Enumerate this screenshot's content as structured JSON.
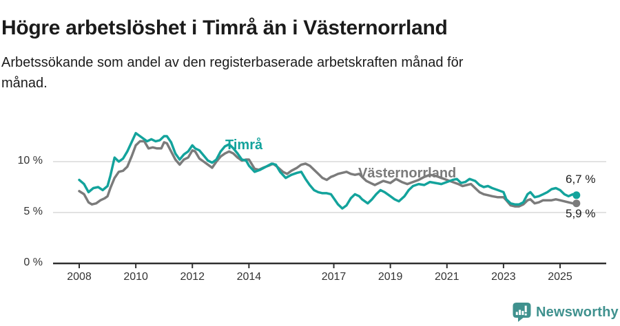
{
  "chart_data": {
    "type": "line",
    "title": "Högre arbetslöshet i Timrå än i Västernorrland",
    "subtitle": "Arbetssökande som andel av den registerbaserade arbetskraften månad för månad.",
    "subtitle_lines": [
      "Arbetssökande som andel av den registerbaserade arbetskraften månad för",
      "månad."
    ],
    "xlabel": "",
    "ylabel": "",
    "grid": true,
    "grid_color": "#d9d9d9",
    "axis_color": "#2f2f2f",
    "legend_position": "inline-labels-on-lines",
    "x_axis": {
      "range": [
        2007.1,
        2026.6
      ],
      "ticks": [
        {
          "label": "2008",
          "year": 2008
        },
        {
          "label": "2010",
          "year": 2010
        },
        {
          "label": "2012",
          "year": 2012
        },
        {
          "label": "2014",
          "year": 2014
        },
        {
          "label": "2017",
          "year": 2017
        },
        {
          "label": "2019",
          "year": 2019
        },
        {
          "label": "2021",
          "year": 2021
        },
        {
          "label": "2023",
          "year": 2023
        },
        {
          "label": "2025",
          "year": 2025
        }
      ]
    },
    "y_axis": {
      "range": [
        0,
        14.4
      ],
      "unit": "%",
      "ticks": [
        {
          "label": "0 %",
          "value": 0
        },
        {
          "label": "5 %",
          "value": 5
        },
        {
          "label": "10 %",
          "value": 10
        }
      ]
    },
    "series": [
      {
        "name": "Timrå",
        "color": "#13a39c",
        "end_label": "6,7 %",
        "end_value": 6.7,
        "points": [
          [
            2008.0,
            8.2
          ],
          [
            2008.17,
            7.8
          ],
          [
            2008.33,
            7.0
          ],
          [
            2008.5,
            7.4
          ],
          [
            2008.67,
            7.5
          ],
          [
            2008.83,
            7.2
          ],
          [
            2009.0,
            7.6
          ],
          [
            2009.1,
            8.6
          ],
          [
            2009.25,
            10.4
          ],
          [
            2009.4,
            10.0
          ],
          [
            2009.55,
            10.3
          ],
          [
            2009.7,
            11.0
          ],
          [
            2009.85,
            11.9
          ],
          [
            2010.0,
            12.8
          ],
          [
            2010.1,
            12.6
          ],
          [
            2010.25,
            12.3
          ],
          [
            2010.4,
            12.0
          ],
          [
            2010.55,
            12.2
          ],
          [
            2010.7,
            12.0
          ],
          [
            2010.85,
            12.1
          ],
          [
            2011.0,
            12.5
          ],
          [
            2011.1,
            12.5
          ],
          [
            2011.25,
            11.9
          ],
          [
            2011.4,
            10.8
          ],
          [
            2011.55,
            10.2
          ],
          [
            2011.7,
            10.7
          ],
          [
            2011.85,
            11.0
          ],
          [
            2012.0,
            11.6
          ],
          [
            2012.1,
            11.3
          ],
          [
            2012.25,
            11.1
          ],
          [
            2012.4,
            10.6
          ],
          [
            2012.55,
            10.1
          ],
          [
            2012.7,
            9.9
          ],
          [
            2012.85,
            10.2
          ],
          [
            2013.0,
            11.0
          ],
          [
            2013.15,
            11.5
          ],
          [
            2013.3,
            11.7
          ],
          [
            2013.45,
            11.3
          ],
          [
            2013.6,
            10.8
          ],
          [
            2013.75,
            10.2
          ],
          [
            2013.9,
            10.1
          ],
          [
            2014.0,
            9.6
          ],
          [
            2014.2,
            9.0
          ],
          [
            2014.4,
            9.2
          ],
          [
            2014.6,
            9.5
          ],
          [
            2014.8,
            9.8
          ],
          [
            2014.95,
            9.7
          ],
          [
            2015.1,
            9.0
          ],
          [
            2015.3,
            8.4
          ],
          [
            2015.5,
            8.7
          ],
          [
            2015.7,
            8.9
          ],
          [
            2015.85,
            9.0
          ],
          [
            2016.0,
            8.3
          ],
          [
            2016.15,
            7.7
          ],
          [
            2016.3,
            7.2
          ],
          [
            2016.45,
            7.0
          ],
          [
            2016.6,
            6.9
          ],
          [
            2016.75,
            6.9
          ],
          [
            2016.9,
            6.8
          ],
          [
            2017.0,
            6.4
          ],
          [
            2017.15,
            5.8
          ],
          [
            2017.3,
            5.4
          ],
          [
            2017.45,
            5.7
          ],
          [
            2017.6,
            6.4
          ],
          [
            2017.75,
            6.8
          ],
          [
            2017.9,
            6.6
          ],
          [
            2018.0,
            6.3
          ],
          [
            2018.2,
            5.9
          ],
          [
            2018.35,
            6.3
          ],
          [
            2018.5,
            6.8
          ],
          [
            2018.65,
            7.2
          ],
          [
            2018.8,
            7.0
          ],
          [
            2019.0,
            6.6
          ],
          [
            2019.15,
            6.3
          ],
          [
            2019.3,
            6.1
          ],
          [
            2019.5,
            6.6
          ],
          [
            2019.65,
            7.2
          ],
          [
            2019.8,
            7.6
          ],
          [
            2020.0,
            7.8
          ],
          [
            2020.2,
            7.7
          ],
          [
            2020.4,
            8.0
          ],
          [
            2020.6,
            7.9
          ],
          [
            2020.8,
            7.8
          ],
          [
            2021.0,
            8.0
          ],
          [
            2021.2,
            8.2
          ],
          [
            2021.35,
            8.3
          ],
          [
            2021.5,
            7.9
          ],
          [
            2021.65,
            8.0
          ],
          [
            2021.8,
            8.3
          ],
          [
            2022.0,
            8.1
          ],
          [
            2022.15,
            7.7
          ],
          [
            2022.3,
            7.5
          ],
          [
            2022.45,
            7.6
          ],
          [
            2022.6,
            7.4
          ],
          [
            2022.8,
            7.2
          ],
          [
            2023.0,
            7.0
          ],
          [
            2023.1,
            6.3
          ],
          [
            2023.25,
            5.9
          ],
          [
            2023.4,
            5.8
          ],
          [
            2023.55,
            5.8
          ],
          [
            2023.7,
            6.0
          ],
          [
            2023.85,
            6.8
          ],
          [
            2023.95,
            7.0
          ],
          [
            2024.1,
            6.5
          ],
          [
            2024.25,
            6.6
          ],
          [
            2024.4,
            6.8
          ],
          [
            2024.55,
            7.0
          ],
          [
            2024.7,
            7.3
          ],
          [
            2024.85,
            7.4
          ],
          [
            2025.0,
            7.2
          ],
          [
            2025.15,
            6.8
          ],
          [
            2025.3,
            6.6
          ],
          [
            2025.45,
            6.8
          ],
          [
            2025.58,
            6.7
          ]
        ]
      },
      {
        "name": "Västernorrland",
        "color": "#7b7b7b",
        "end_label": "5,9 %",
        "end_value": 5.9,
        "points": [
          [
            2008.0,
            7.1
          ],
          [
            2008.17,
            6.8
          ],
          [
            2008.33,
            6.0
          ],
          [
            2008.45,
            5.8
          ],
          [
            2008.6,
            5.9
          ],
          [
            2008.75,
            6.2
          ],
          [
            2008.9,
            6.4
          ],
          [
            2009.0,
            6.6
          ],
          [
            2009.1,
            7.4
          ],
          [
            2009.25,
            8.4
          ],
          [
            2009.4,
            9.0
          ],
          [
            2009.55,
            9.1
          ],
          [
            2009.7,
            9.5
          ],
          [
            2009.85,
            10.5
          ],
          [
            2010.0,
            11.6
          ],
          [
            2010.15,
            12.0
          ],
          [
            2010.3,
            12.0
          ],
          [
            2010.45,
            11.3
          ],
          [
            2010.6,
            11.4
          ],
          [
            2010.75,
            11.3
          ],
          [
            2010.9,
            11.3
          ],
          [
            2011.0,
            11.9
          ],
          [
            2011.1,
            11.8
          ],
          [
            2011.25,
            11.0
          ],
          [
            2011.4,
            10.2
          ],
          [
            2011.55,
            9.7
          ],
          [
            2011.7,
            10.2
          ],
          [
            2011.85,
            10.4
          ],
          [
            2012.0,
            11.1
          ],
          [
            2012.1,
            11.0
          ],
          [
            2012.25,
            10.3
          ],
          [
            2012.4,
            10.0
          ],
          [
            2012.55,
            9.7
          ],
          [
            2012.7,
            9.4
          ],
          [
            2012.85,
            10.0
          ],
          [
            2013.0,
            10.5
          ],
          [
            2013.15,
            10.8
          ],
          [
            2013.3,
            11.0
          ],
          [
            2013.45,
            10.8
          ],
          [
            2013.6,
            10.4
          ],
          [
            2013.75,
            10.1
          ],
          [
            2013.9,
            10.2
          ],
          [
            2014.0,
            10.2
          ],
          [
            2014.2,
            9.3
          ],
          [
            2014.35,
            9.2
          ],
          [
            2014.5,
            9.4
          ],
          [
            2014.7,
            9.6
          ],
          [
            2014.85,
            9.8
          ],
          [
            2015.0,
            9.5
          ],
          [
            2015.2,
            9.0
          ],
          [
            2015.35,
            8.8
          ],
          [
            2015.5,
            9.1
          ],
          [
            2015.7,
            9.4
          ],
          [
            2015.85,
            9.7
          ],
          [
            2016.0,
            9.8
          ],
          [
            2016.15,
            9.6
          ],
          [
            2016.3,
            9.2
          ],
          [
            2016.45,
            8.8
          ],
          [
            2016.6,
            8.4
          ],
          [
            2016.75,
            8.2
          ],
          [
            2016.9,
            8.5
          ],
          [
            2017.0,
            8.6
          ],
          [
            2017.15,
            8.8
          ],
          [
            2017.3,
            8.9
          ],
          [
            2017.45,
            9.0
          ],
          [
            2017.6,
            8.8
          ],
          [
            2017.75,
            8.7
          ],
          [
            2017.9,
            8.8
          ],
          [
            2018.0,
            8.5
          ],
          [
            2018.15,
            8.1
          ],
          [
            2018.3,
            7.9
          ],
          [
            2018.45,
            7.7
          ],
          [
            2018.6,
            7.9
          ],
          [
            2018.75,
            8.1
          ],
          [
            2019.0,
            7.9
          ],
          [
            2019.2,
            8.3
          ],
          [
            2019.4,
            8.0
          ],
          [
            2019.6,
            7.8
          ],
          [
            2019.8,
            8.0
          ],
          [
            2020.0,
            8.2
          ],
          [
            2020.2,
            8.5
          ],
          [
            2020.4,
            8.7
          ],
          [
            2020.6,
            8.6
          ],
          [
            2020.8,
            8.4
          ],
          [
            2021.0,
            8.2
          ],
          [
            2021.2,
            8.0
          ],
          [
            2021.4,
            7.8
          ],
          [
            2021.55,
            7.6
          ],
          [
            2021.7,
            7.7
          ],
          [
            2021.85,
            7.8
          ],
          [
            2022.0,
            7.4
          ],
          [
            2022.15,
            7.0
          ],
          [
            2022.3,
            6.8
          ],
          [
            2022.45,
            6.7
          ],
          [
            2022.6,
            6.6
          ],
          [
            2022.8,
            6.5
          ],
          [
            2023.0,
            6.5
          ],
          [
            2023.1,
            6.2
          ],
          [
            2023.25,
            5.7
          ],
          [
            2023.4,
            5.6
          ],
          [
            2023.55,
            5.6
          ],
          [
            2023.7,
            5.8
          ],
          [
            2023.85,
            6.2
          ],
          [
            2023.95,
            6.3
          ],
          [
            2024.1,
            5.9
          ],
          [
            2024.25,
            6.0
          ],
          [
            2024.4,
            6.2
          ],
          [
            2024.55,
            6.2
          ],
          [
            2024.7,
            6.2
          ],
          [
            2024.85,
            6.3
          ],
          [
            2025.0,
            6.2
          ],
          [
            2025.15,
            6.1
          ],
          [
            2025.3,
            6.0
          ],
          [
            2025.45,
            5.9
          ],
          [
            2025.58,
            5.9
          ]
        ]
      }
    ]
  },
  "footer": {
    "brand": "Newsworthy",
    "brand_color": "#3f918e",
    "logo_icon": "newsworthy-speech-bubble-bar-chart-icon"
  }
}
